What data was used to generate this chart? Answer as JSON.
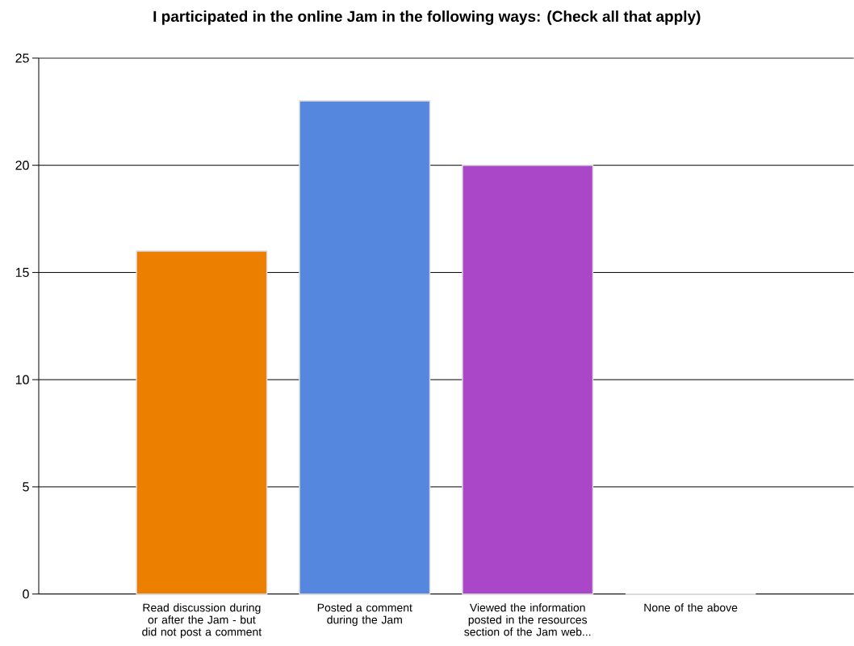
{
  "chart_data": {
    "type": "bar",
    "title": "I participated in the online Jam in the following ways: (Check all that apply)",
    "categories": [
      "Read discussion during or after the Jam - but did not post a comment",
      "Posted a comment during the Jam",
      "Viewed the information posted in the resources section of the Jam web...",
      "None of the above"
    ],
    "values": [
      16,
      23,
      20,
      0
    ],
    "colors": [
      "#ec7f00",
      "#5587de",
      "#aa47c9",
      "#d9d9d9"
    ],
    "ylim": [
      0,
      25
    ],
    "yticks": [
      0,
      5,
      10,
      15,
      20,
      25
    ],
    "grid": "y"
  }
}
